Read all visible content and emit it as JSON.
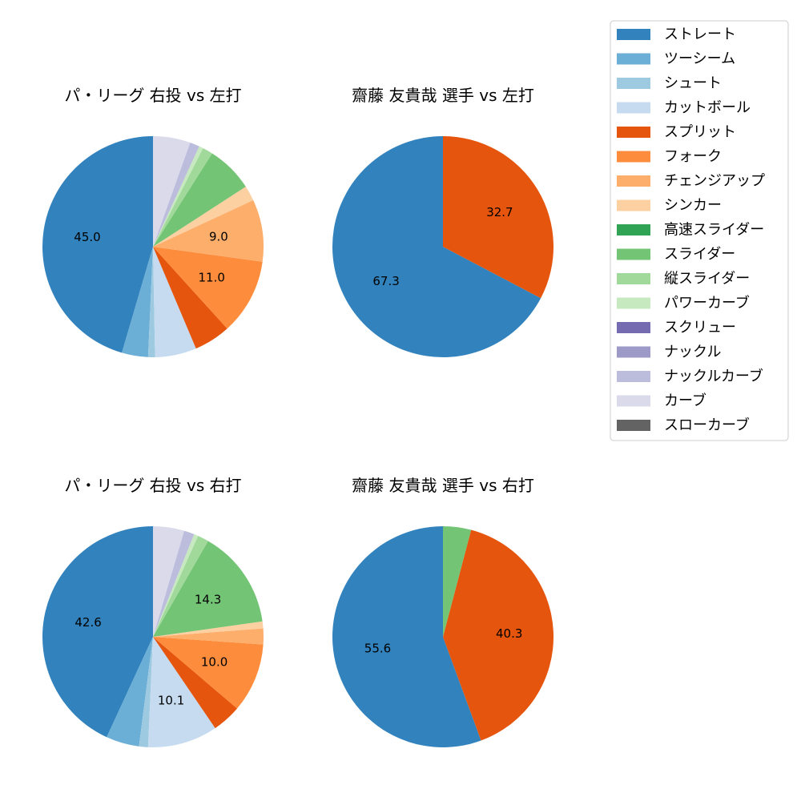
{
  "legend": {
    "entries": [
      {
        "name": "ストレート",
        "color": "#3182bd"
      },
      {
        "name": "ツーシーム",
        "color": "#6baed6"
      },
      {
        "name": "シュート",
        "color": "#9ecae1"
      },
      {
        "name": "カットボール",
        "color": "#c6dbef"
      },
      {
        "name": "スプリット",
        "color": "#e6550d"
      },
      {
        "name": "フォーク",
        "color": "#fd8d3c"
      },
      {
        "name": "チェンジアップ",
        "color": "#fdae6b"
      },
      {
        "name": "シンカー",
        "color": "#fdd0a2"
      },
      {
        "name": "高速スライダー",
        "color": "#31a354"
      },
      {
        "name": "スライダー",
        "color": "#74c476"
      },
      {
        "name": "縦スライダー",
        "color": "#a1d99b"
      },
      {
        "name": "パワーカーブ",
        "color": "#c7e9c0"
      },
      {
        "name": "スクリュー",
        "color": "#756bb1"
      },
      {
        "name": "ナックル",
        "color": "#9e9ac8"
      },
      {
        "name": "ナックルカーブ",
        "color": "#bcbddc"
      },
      {
        "name": "カーブ",
        "color": "#dadaeb"
      },
      {
        "name": "スローカーブ",
        "color": "#636363"
      }
    ]
  },
  "chart_data": [
    {
      "type": "pie",
      "title": "パ・リーグ 右投 vs 左打",
      "slices": [
        {
          "category": "ストレート",
          "value": 45.0,
          "label": "45.0"
        },
        {
          "category": "ツーシーム",
          "value": 3.8,
          "label": ""
        },
        {
          "category": "シュート",
          "value": 1.0,
          "label": ""
        },
        {
          "category": "カットボール",
          "value": 6.0,
          "label": ""
        },
        {
          "category": "スプリット",
          "value": 5.3,
          "label": ""
        },
        {
          "category": "フォーク",
          "value": 11.0,
          "label": "11.0"
        },
        {
          "category": "チェンジアップ",
          "value": 9.0,
          "label": "9.0"
        },
        {
          "category": "シンカー",
          "value": 2.2,
          "label": ""
        },
        {
          "category": "スライダー",
          "value": 6.8,
          "label": ""
        },
        {
          "category": "縦スライダー",
          "value": 1.5,
          "label": ""
        },
        {
          "category": "パワーカーブ",
          "value": 0.6,
          "label": ""
        },
        {
          "category": "ナックルカーブ",
          "value": 1.4,
          "label": ""
        },
        {
          "category": "カーブ",
          "value": 5.4,
          "label": ""
        }
      ]
    },
    {
      "type": "pie",
      "title": "齋藤 友貴哉 選手 vs 左打",
      "slices": [
        {
          "category": "ストレート",
          "value": 67.3,
          "label": "67.3"
        },
        {
          "category": "スプリット",
          "value": 32.7,
          "label": "32.7"
        }
      ]
    },
    {
      "type": "pie",
      "title": "パ・リーグ 右投 vs 右打",
      "slices": [
        {
          "category": "ストレート",
          "value": 42.6,
          "label": "42.6"
        },
        {
          "category": "ツーシーム",
          "value": 4.8,
          "label": ""
        },
        {
          "category": "シュート",
          "value": 1.3,
          "label": ""
        },
        {
          "category": "カットボール",
          "value": 10.1,
          "label": "10.1"
        },
        {
          "category": "スプリット",
          "value": 4.2,
          "label": ""
        },
        {
          "category": "フォーク",
          "value": 10.0,
          "label": "10.0"
        },
        {
          "category": "チェンジアップ",
          "value": 2.3,
          "label": ""
        },
        {
          "category": "シンカー",
          "value": 1.0,
          "label": ""
        },
        {
          "category": "スライダー",
          "value": 14.3,
          "label": "14.3"
        },
        {
          "category": "縦スライダー",
          "value": 1.6,
          "label": ""
        },
        {
          "category": "パワーカーブ",
          "value": 0.6,
          "label": ""
        },
        {
          "category": "ナックルカーブ",
          "value": 1.5,
          "label": ""
        },
        {
          "category": "カーブ",
          "value": 4.5,
          "label": ""
        }
      ]
    },
    {
      "type": "pie",
      "title": "齋藤 友貴哉 選手 vs 右打",
      "slices": [
        {
          "category": "ストレート",
          "value": 55.6,
          "label": "55.6"
        },
        {
          "category": "スプリット",
          "value": 40.3,
          "label": "40.3"
        },
        {
          "category": "スライダー",
          "value": 4.1,
          "label": ""
        }
      ]
    }
  ]
}
